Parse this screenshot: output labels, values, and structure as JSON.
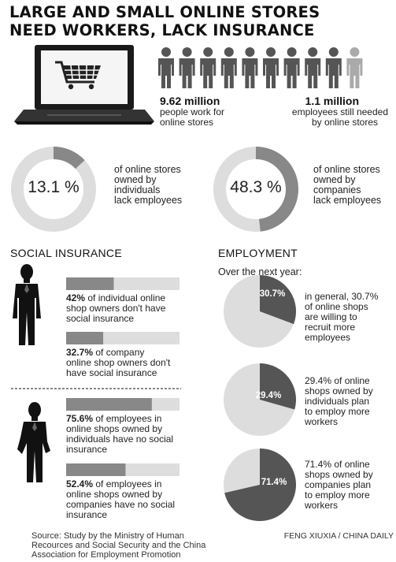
{
  "header": {
    "title_line1": "LARGE AND SMALL ONLINE STORES",
    "title_line2": "NEED WORKERS, LACK INSURANCE"
  },
  "top_stats": {
    "workers_value": "9.62 million",
    "workers_line1": "people work for",
    "workers_line2": "online stores",
    "needed_value": "1.1 million",
    "needed_line1": "employees still needed",
    "needed_line2": "by online stores",
    "people_icons_dark": 9,
    "people_icons_light": 1,
    "dark_color": "#555555",
    "light_color": "#aaaaaa"
  },
  "donuts": [
    {
      "value_label": "13.1 %",
      "percent": 13.1,
      "line1": "of online stores",
      "line2": "owned by",
      "line3": "individuals",
      "line4": "lack employees"
    },
    {
      "value_label": "48.3 %",
      "percent": 48.3,
      "line1": "of online stores",
      "line2": "owned by",
      "line3": "companies",
      "line4": "lack employees"
    }
  ],
  "social_insurance": {
    "heading": "SOCIAL INSURANCE",
    "bars": [
      {
        "percent": 42,
        "pct_label": "42%",
        "line1_rest": " of individual online",
        "line2": "shop owners don't have",
        "line3": "social insurance",
        "line4": ""
      },
      {
        "percent": 32.7,
        "pct_label": "32.7%",
        "line1_rest": " of company",
        "line2": "online shop owners don't",
        "line3": "have social insurance",
        "line4": ""
      },
      {
        "percent": 75.6,
        "pct_label": "75.6%",
        "line1_rest": " of employees in",
        "line2": "online shops owned by",
        "line3": "individuals have no social",
        "line4": "insurance"
      },
      {
        "percent": 52.4,
        "pct_label": "52.4%",
        "line1_rest": " of employees in",
        "line2": "online shops owned by",
        "line3": "companies have no social",
        "line4": "insurance"
      }
    ]
  },
  "employment": {
    "heading": "EMPLOYMENT",
    "subheading": "Over the next year:",
    "pies": [
      {
        "percent": 30.7,
        "label": "30.7%",
        "line1": "in general, 30.7%",
        "line2": "of online shops",
        "line3": "are willing to",
        "line4": "recruit more",
        "line5": "employees"
      },
      {
        "percent": 29.4,
        "label": "29.4%",
        "line1": "29.4% of online",
        "line2": "shops owned by",
        "line3": "individuals plan",
        "line4": "to employ more",
        "line5": "workers"
      },
      {
        "percent": 71.4,
        "label": "71.4%",
        "line1": "71.4% of online",
        "line2": "shops owned by",
        "line3": "companies plan",
        "line4": "to employ more",
        "line5": "workers"
      }
    ]
  },
  "footer": {
    "source_line1": "Source: Study by the Ministry of Human",
    "source_line2": "Recources and Social Security and the China",
    "source_line3": "Association for Employment Promotion",
    "credit": "FENG XIUXIA / CHINA  DAILY"
  },
  "icons": {
    "laptop": "laptop-cart-icon",
    "person": "person-icon",
    "businessman": "businessman-silhouette-icon"
  },
  "colors": {
    "dark": "#555555",
    "mid": "#888888",
    "light": "#dddddd",
    "black": "#111111"
  },
  "chart_data": [
    {
      "type": "pie",
      "title": "",
      "categories": [
        "individual-owned stores lacking employees",
        "other"
      ],
      "values": [
        13.1,
        86.9
      ]
    },
    {
      "type": "pie",
      "title": "",
      "categories": [
        "company-owned stores lacking employees",
        "other"
      ],
      "values": [
        48.3,
        51.7
      ]
    },
    {
      "type": "bar",
      "title": "SOCIAL INSURANCE",
      "categories": [
        "individual online shop owners",
        "company online shop owners",
        "employees in shops owned by individuals",
        "employees in shops owned by companies"
      ],
      "values": [
        42,
        32.7,
        75.6,
        52.4
      ],
      "ylim": [
        0,
        100
      ]
    },
    {
      "type": "pie",
      "title": "EMPLOYMENT",
      "categories": [
        "in general",
        "owned by individuals",
        "owned by companies"
      ],
      "values": [
        30.7,
        29.4,
        71.4
      ]
    }
  ]
}
